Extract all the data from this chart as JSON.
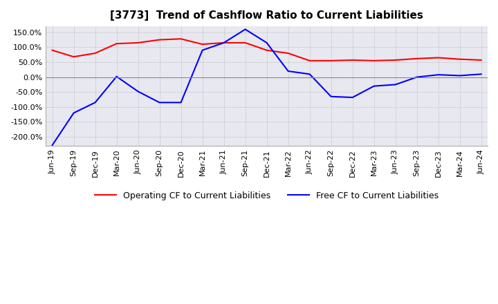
{
  "title": "[3773]  Trend of Cashflow Ratio to Current Liabilities",
  "x_labels": [
    "Jun-19",
    "Sep-19",
    "Dec-19",
    "Mar-20",
    "Jun-20",
    "Sep-20",
    "Dec-20",
    "Mar-21",
    "Jun-21",
    "Sep-21",
    "Dec-21",
    "Mar-22",
    "Jun-22",
    "Sep-22",
    "Dec-22",
    "Mar-23",
    "Jun-23",
    "Sep-23",
    "Dec-23",
    "Mar-24",
    "Jun-24"
  ],
  "operating_cf": [
    90.0,
    68.0,
    80.0,
    112.0,
    115.0,
    125.0,
    128.0,
    110.0,
    115.0,
    115.0,
    90.0,
    80.0,
    55.0,
    55.0,
    57.0,
    55.0,
    57.0,
    62.0,
    65.0,
    60.0,
    57.0
  ],
  "free_cf": [
    -228.0,
    -120.0,
    -85.0,
    2.0,
    -48.0,
    -85.0,
    -85.0,
    90.0,
    115.0,
    160.0,
    115.0,
    20.0,
    10.0,
    -65.0,
    -68.0,
    -30.0,
    -25.0,
    0.0,
    8.0,
    5.0,
    10.0
  ],
  "operating_color": "#ff0000",
  "free_color": "#0000ff",
  "ylim": [
    -230,
    170
  ],
  "yticks": [
    -200,
    -150,
    -100,
    -50,
    0,
    50,
    100,
    150
  ],
  "grid_color": "#aaaaaa",
  "background_color": "#ffffff",
  "plot_bg_color": "#e8e8f0",
  "title_fontsize": 11,
  "tick_fontsize": 8,
  "legend_labels": [
    "Operating CF to Current Liabilities",
    "Free CF to Current Liabilities"
  ]
}
